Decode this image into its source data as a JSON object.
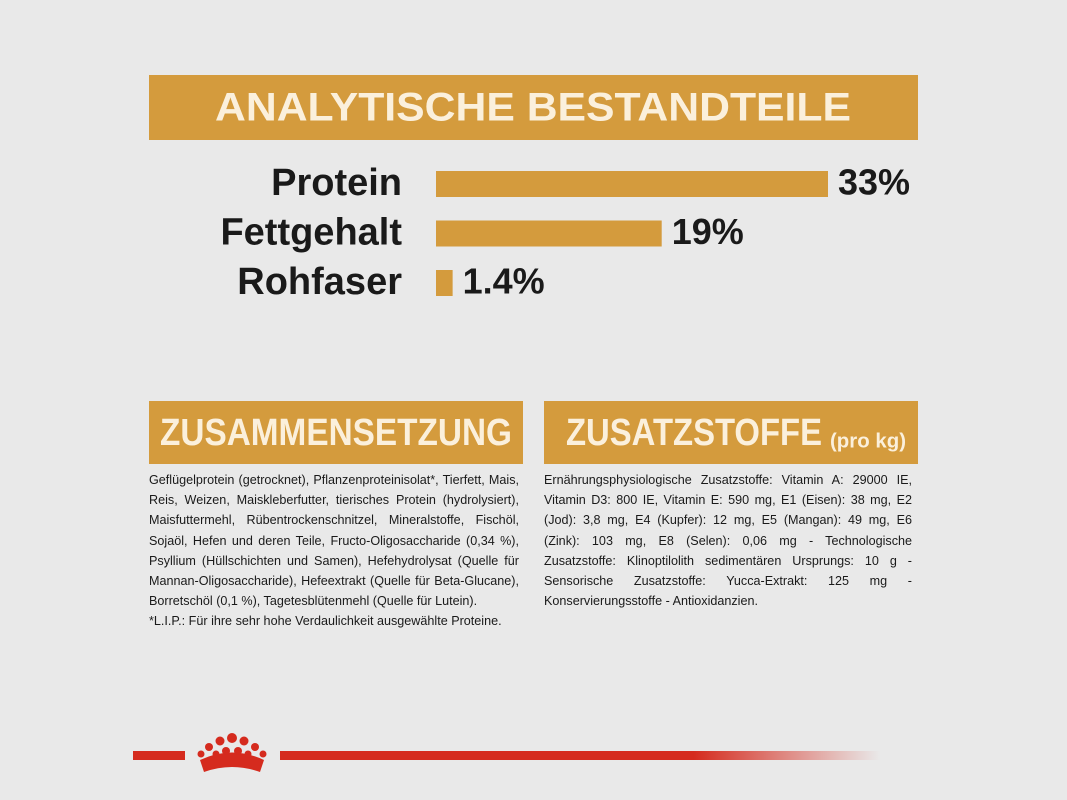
{
  "chart_data": {
    "type": "bar",
    "orientation": "horizontal",
    "title": "ANALYTISCHE BESTANDTEILE",
    "categories": [
      "Protein",
      "Fettgehalt",
      "Rohfaser"
    ],
    "values": [
      33,
      19,
      1.4
    ],
    "value_labels": [
      "33%",
      "19%",
      "1.4%"
    ],
    "color": "#d49b3d"
  },
  "composition": {
    "heading": "ZUSAMMENSETZUNG",
    "text": "Geflügelprotein (getrocknet), Pflanzenproteinisolat*, Tierfett, Mais, Reis, Weizen, Maiskleberfutter, tierisches Protein (hydrolysiert), Maisfuttermehl, Rübentrockenschnitzel, Mineralstoffe, Fischöl, Sojaöl, Hefen und deren Teile, Fructo-Oligosaccharide (0,34 %), Psyllium (Hüllschichten und Samen), Hefehydrolysat (Quelle für Mannan-Oligosaccharide), Hefeextrakt (Quelle für Beta-Glucane), Borretschöl (0,1 %), Tagetesblütenmehl (Quelle für Lutein).",
    "note": "*L.I.P.: Für ihre sehr hohe Verdaulichkeit ausgewählte Proteine."
  },
  "additives": {
    "heading": "ZUSATZSTOFFE",
    "heading_suffix": "(pro kg)",
    "text": "Ernährungsphysiologische Zusatzstoffe: Vitamin A: 29000 IE, Vitamin D3: 800 IE, Vitamin E: 590 mg, E1 (Eisen): 38 mg, E2 (Jod): 3,8 mg, E4 (Kupfer): 12 mg, E5 (Mangan): 49 mg, E6 (Zink): 103 mg, E8 (Selen): 0,06 mg - Technologische Zusatzstoffe: Klinoptilolith sedimentären Ursprungs: 10 g - Sensorische Zusatzstoffe: Yucca-Extrakt: 125 mg - Konservierungsstoffe - Antioxidanzien."
  }
}
